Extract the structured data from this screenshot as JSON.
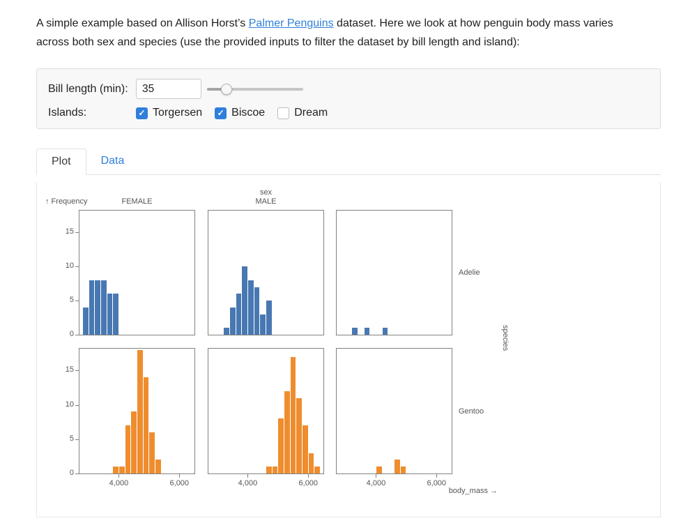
{
  "intro": {
    "text_before": "A simple example based on Allison Horst’s ",
    "link_text": "Palmer Penguins",
    "text_after": " dataset. Here we look at how penguin body mass varies across both sex and species (use the provided inputs to filter the dataset by bill length and island):"
  },
  "filters": {
    "bill_length": {
      "label": "Bill length (min):",
      "value": "35",
      "slider_pct": 20
    },
    "islands": {
      "label": "Islands:",
      "options": [
        {
          "label": "Torgersen",
          "checked": true
        },
        {
          "label": "Biscoe",
          "checked": true
        },
        {
          "label": "Dream",
          "checked": false
        }
      ]
    }
  },
  "tabs": [
    {
      "label": "Plot",
      "active": true
    },
    {
      "label": "Data",
      "active": false
    }
  ],
  "plot_labels": {
    "y_axis": "↑ Frequency",
    "x_axis": "body_mass →",
    "facet_col_title": "sex",
    "facet_row_title": "species",
    "col_labels": [
      "FEMALE",
      "MALE",
      ""
    ],
    "row_labels": [
      "Adelie",
      "Gentoo"
    ]
  },
  "colors": {
    "accent": "#2f7fdb",
    "adelie_bar": "#4878b2",
    "gentoo_bar": "#ef8d2e",
    "frame": "#828282"
  },
  "chart_data": {
    "type": "bar",
    "title": "Penguin body mass histograms faceted by sex (columns) and species (rows)",
    "xlabel": "body_mass",
    "ylabel": "Frequency",
    "x_domain": [
      2700,
      6500
    ],
    "y_domain": [
      0,
      18.2
    ],
    "bin_width": 200,
    "x_ticks": [
      {
        "value": 4000,
        "label": "4,000"
      },
      {
        "value": 6000,
        "label": "6,000"
      }
    ],
    "y_ticks": [
      0,
      5,
      10,
      15
    ],
    "grid": false,
    "legend": "none",
    "col_facets": [
      "FEMALE",
      "MALE",
      "(blank)"
    ],
    "row_facets": [
      "Adelie",
      "Gentoo"
    ],
    "series_colors": {
      "Adelie": "#4878b2",
      "Gentoo": "#ef8d2e"
    },
    "facets": [
      {
        "row": "Adelie",
        "col": "FEMALE",
        "bins": [
          [
            2800,
            4
          ],
          [
            3000,
            8
          ],
          [
            3200,
            8
          ],
          [
            3400,
            8
          ],
          [
            3600,
            6
          ],
          [
            3800,
            6
          ]
        ]
      },
      {
        "row": "Adelie",
        "col": "MALE",
        "bins": [
          [
            3200,
            1
          ],
          [
            3400,
            4
          ],
          [
            3600,
            6
          ],
          [
            3800,
            10
          ],
          [
            4000,
            8
          ],
          [
            4200,
            7
          ],
          [
            4400,
            3
          ],
          [
            4600,
            5
          ]
        ]
      },
      {
        "row": "Adelie",
        "col": "(blank)",
        "bins": [
          [
            3200,
            1
          ],
          [
            3600,
            1
          ],
          [
            4200,
            1
          ]
        ]
      },
      {
        "row": "Gentoo",
        "col": "FEMALE",
        "bins": [
          [
            3800,
            1
          ],
          [
            4000,
            1
          ],
          [
            4200,
            7
          ],
          [
            4400,
            9
          ],
          [
            4600,
            18
          ],
          [
            4800,
            14
          ],
          [
            5000,
            6
          ],
          [
            5200,
            2
          ]
        ]
      },
      {
        "row": "Gentoo",
        "col": "MALE",
        "bins": [
          [
            4600,
            1
          ],
          [
            4800,
            1
          ],
          [
            5000,
            8
          ],
          [
            5200,
            12
          ],
          [
            5400,
            17
          ],
          [
            5600,
            11
          ],
          [
            5800,
            7
          ],
          [
            6000,
            3
          ],
          [
            6200,
            1
          ]
        ]
      },
      {
        "row": "Gentoo",
        "col": "(blank)",
        "bins": [
          [
            4000,
            1
          ],
          [
            4600,
            2
          ],
          [
            4800,
            1
          ]
        ]
      }
    ]
  }
}
